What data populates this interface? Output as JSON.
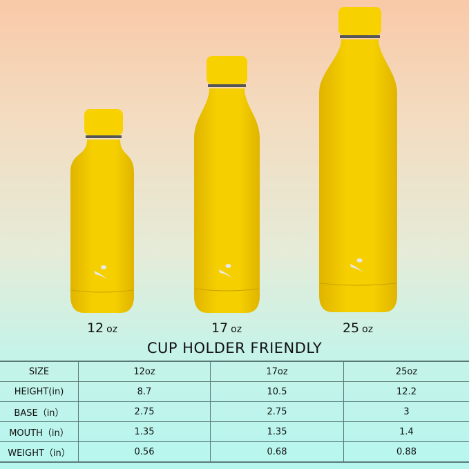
{
  "products": [
    {
      "size": "12",
      "unit": "oz"
    },
    {
      "size": "17",
      "unit": "oz"
    },
    {
      "size": "25",
      "unit": "oz"
    }
  ],
  "colors": {
    "bottle": "#f5cf00",
    "bottle_shade": "#e0b400",
    "cap": "#f7d200",
    "logo": "#e8e8e8"
  },
  "icons": {
    "bottle_logo": "leaf-hand-logo-icon"
  },
  "title": "CUP HOLDER FRIENDLY",
  "table": {
    "rows": [
      [
        "SIZE",
        "12oz",
        "17oz",
        "25oz"
      ],
      [
        "HEIGHT(in)",
        "8.7",
        "10.5",
        "12.2"
      ],
      [
        "BASE（in）",
        "2.75",
        "2.75",
        "3"
      ],
      [
        "MOUTH（in）",
        "1.35",
        "1.35",
        "1.4"
      ],
      [
        "WEIGHT（in）",
        "0.56",
        "0.68",
        "0.88"
      ]
    ]
  }
}
